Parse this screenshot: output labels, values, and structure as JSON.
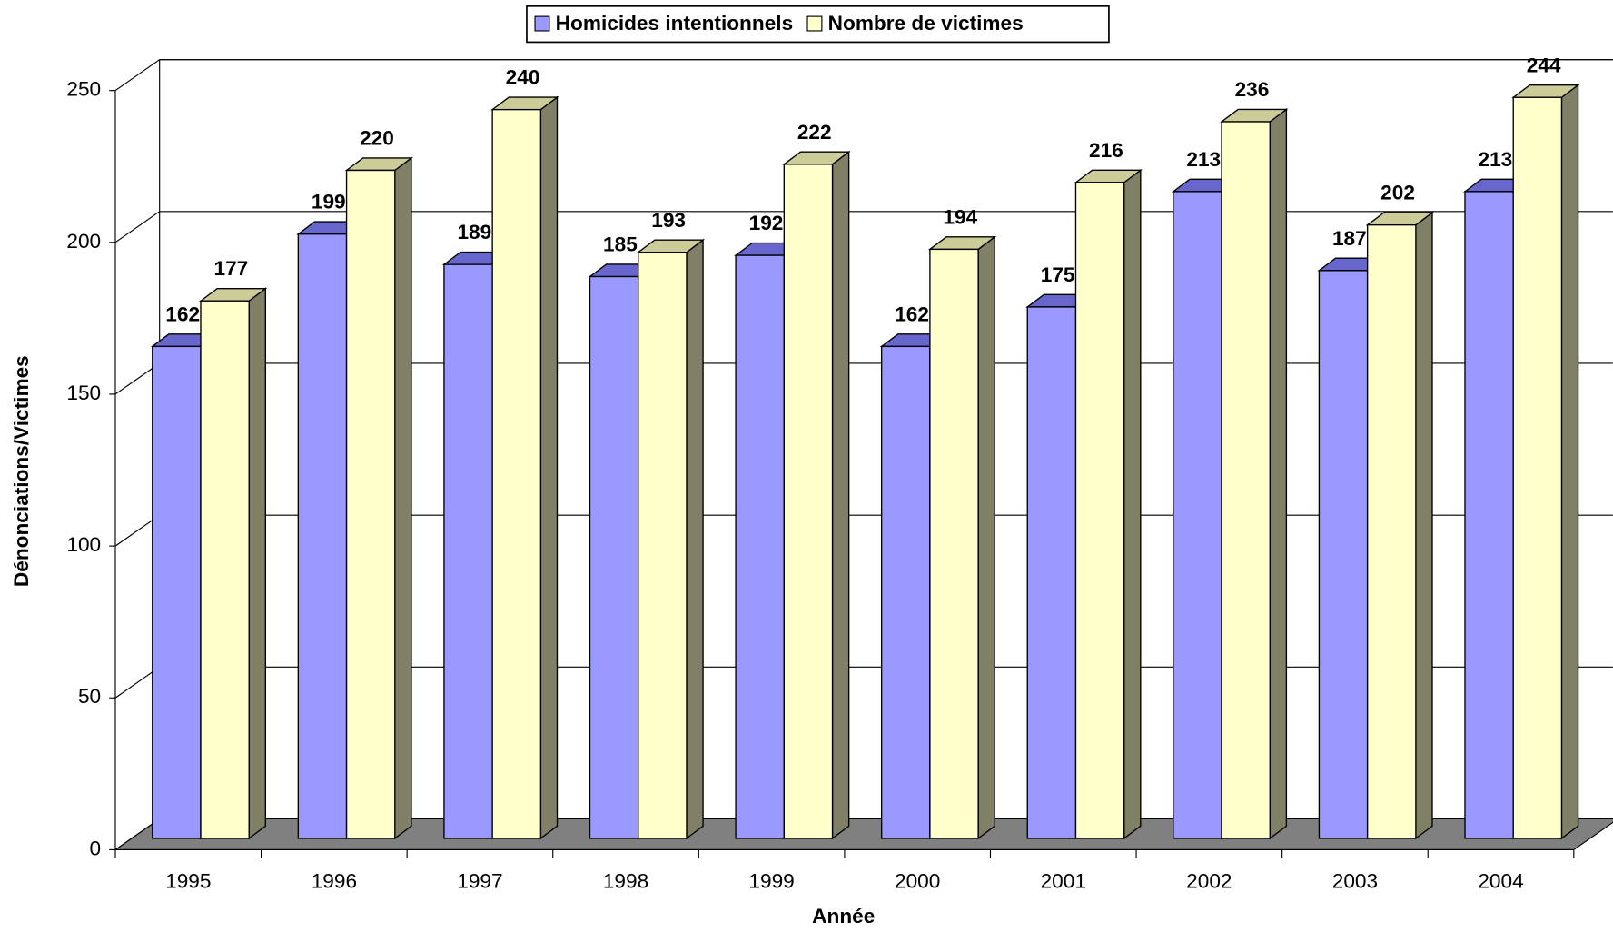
{
  "chart_data": {
    "type": "bar3d",
    "categories": [
      "1995",
      "1996",
      "1997",
      "1998",
      "1999",
      "2000",
      "2001",
      "2002",
      "2003",
      "2004"
    ],
    "series": [
      {
        "name": "Homicides intentionnels",
        "color": "#9999ff",
        "values": [
          162,
          199,
          189,
          185,
          192,
          162,
          175,
          213,
          187,
          213
        ]
      },
      {
        "name": "Nombre de victimes",
        "color": "#ffffcc",
        "values": [
          177,
          220,
          240,
          193,
          222,
          194,
          216,
          236,
          202,
          244
        ]
      }
    ],
    "x_label": "Année",
    "y_label": "Dénonciations/Victimes",
    "ylim": [
      0,
      250
    ],
    "yticks": [
      0,
      50,
      100,
      150,
      200,
      250
    ],
    "grid": true,
    "legend": "top"
  }
}
